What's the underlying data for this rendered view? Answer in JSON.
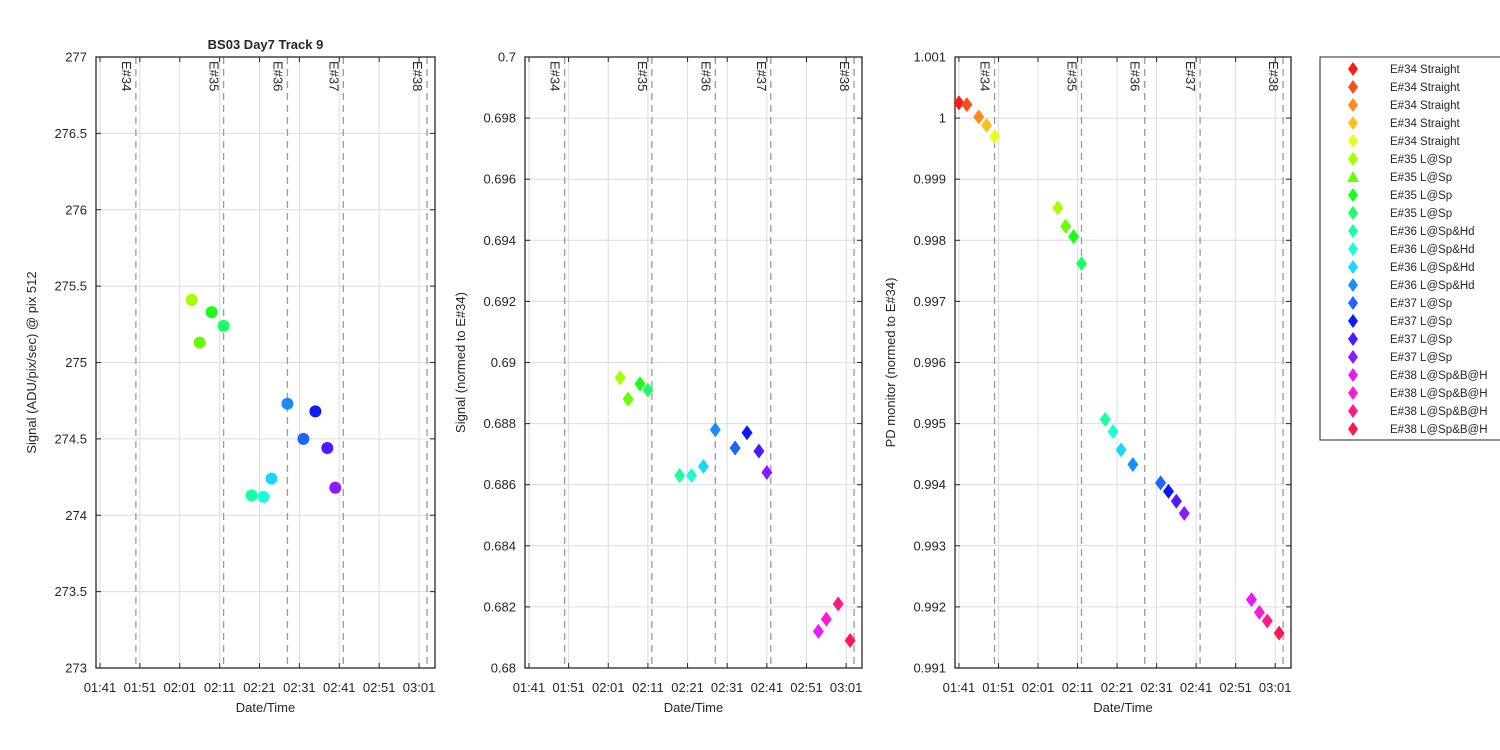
{
  "chart_data": [
    {
      "type": "scatter",
      "title": "BS03 Day7 Track 9",
      "xlabel": "Date/Time",
      "ylabel": "Signal (ADU/pix/sec) @ pix 512",
      "marker": "circle",
      "xlim": [
        "01:40",
        "03:05"
      ],
      "ylim": [
        273,
        277
      ],
      "yticks": [
        "273",
        "273.5",
        "274",
        "274.5",
        "275",
        "275.5",
        "276",
        "276.5",
        "277"
      ],
      "xticks": [
        "01:41",
        "01:51",
        "02:01",
        "02:11",
        "02:21",
        "02:31",
        "02:41",
        "02:51",
        "03:01"
      ],
      "grid": true,
      "event_lines": [
        {
          "label": "E#34",
          "time": "01:50"
        },
        {
          "label": "E#35",
          "time": "02:12"
        },
        {
          "label": "E#36",
          "time": "02:28"
        },
        {
          "label": "E#37",
          "time": "02:42"
        },
        {
          "label": "E#38",
          "time": "03:03"
        }
      ],
      "points": [
        {
          "x": "02:04",
          "y": 275.41,
          "color": "#a6ff00"
        },
        {
          "x": "02:06",
          "y": 275.13,
          "color": "#66ff00"
        },
        {
          "x": "02:09",
          "y": 275.33,
          "color": "#1aff1a"
        },
        {
          "x": "02:12",
          "y": 275.24,
          "color": "#1aff66"
        },
        {
          "x": "02:19",
          "y": 274.13,
          "color": "#1aff9f"
        },
        {
          "x": "02:22",
          "y": 274.12,
          "color": "#1affd5"
        },
        {
          "x": "02:24",
          "y": 274.24,
          "color": "#1ad5ff"
        },
        {
          "x": "02:28",
          "y": 274.73,
          "color": "#1a8cff"
        },
        {
          "x": "02:32",
          "y": 274.5,
          "color": "#1a66ff"
        },
        {
          "x": "02:35",
          "y": 274.68,
          "color": "#0d1aff"
        },
        {
          "x": "02:38",
          "y": 274.44,
          "color": "#4d1aff"
        },
        {
          "x": "02:40",
          "y": 274.18,
          "color": "#8c1aff"
        }
      ]
    },
    {
      "type": "scatter",
      "title": "",
      "xlabel": "Date/Time",
      "ylabel": "Signal (normed to E#34)",
      "marker": "diamond",
      "xlim": [
        "01:40",
        "03:05"
      ],
      "ylim": [
        0.68,
        0.7
      ],
      "yticks": [
        "0.68",
        "0.682",
        "0.684",
        "0.686",
        "0.688",
        "0.69",
        "0.692",
        "0.694",
        "0.696",
        "0.698",
        "0.7"
      ],
      "xticks": [
        "01:41",
        "01:51",
        "02:01",
        "02:11",
        "02:21",
        "02:31",
        "02:41",
        "02:51",
        "03:01"
      ],
      "grid": true,
      "event_lines": [
        {
          "label": "E#34",
          "time": "01:50"
        },
        {
          "label": "E#35",
          "time": "02:12"
        },
        {
          "label": "E#36",
          "time": "02:28"
        },
        {
          "label": "E#37",
          "time": "02:42"
        },
        {
          "label": "E#38",
          "time": "03:03"
        }
      ],
      "points": [
        {
          "x": "02:04",
          "y": 0.6895,
          "color": "#a6ff00"
        },
        {
          "x": "02:06",
          "y": 0.6888,
          "color": "#66ff00"
        },
        {
          "x": "02:09",
          "y": 0.6893,
          "color": "#1aff1a"
        },
        {
          "x": "02:11",
          "y": 0.6891,
          "color": "#1aff66"
        },
        {
          "x": "02:19",
          "y": 0.6863,
          "color": "#1aff9f"
        },
        {
          "x": "02:22",
          "y": 0.6863,
          "color": "#1affd5"
        },
        {
          "x": "02:25",
          "y": 0.6866,
          "color": "#1ad5ff"
        },
        {
          "x": "02:28",
          "y": 0.6878,
          "color": "#1a8cff"
        },
        {
          "x": "02:33",
          "y": 0.6872,
          "color": "#1a66ff"
        },
        {
          "x": "02:36",
          "y": 0.6877,
          "color": "#0d1aff"
        },
        {
          "x": "02:39",
          "y": 0.6871,
          "color": "#4d1aff"
        },
        {
          "x": "02:41",
          "y": 0.6864,
          "color": "#8c1aff"
        },
        {
          "x": "02:54",
          "y": 0.6812,
          "color": "#e61aff"
        },
        {
          "x": "02:56",
          "y": 0.6816,
          "color": "#ff1ad5"
        },
        {
          "x": "02:59",
          "y": 0.6821,
          "color": "#ff1a8c"
        },
        {
          "x": "03:02",
          "y": 0.6809,
          "color": "#ff1a4d"
        }
      ]
    },
    {
      "type": "scatter",
      "title": "",
      "xlabel": "Date/Time",
      "ylabel": "PD monitor (normed to E#34)",
      "marker": "diamond",
      "xlim": [
        "01:40",
        "03:05"
      ],
      "ylim": [
        0.991,
        1.001
      ],
      "yticks": [
        "0.991",
        "0.992",
        "0.993",
        "0.994",
        "0.995",
        "0.996",
        "0.997",
        "0.998",
        "0.999",
        "1",
        "1.001"
      ],
      "xticks": [
        "01:41",
        "01:51",
        "02:01",
        "02:11",
        "02:21",
        "02:31",
        "02:41",
        "02:51",
        "03:01"
      ],
      "grid": true,
      "event_lines": [
        {
          "label": "E#34",
          "time": "01:50"
        },
        {
          "label": "E#35",
          "time": "02:12"
        },
        {
          "label": "E#36",
          "time": "02:28"
        },
        {
          "label": "E#37",
          "time": "02:42"
        },
        {
          "label": "E#38",
          "time": "03:03"
        }
      ],
      "points": [
        {
          "x": "01:41",
          "y": 1.00025,
          "color": "#ff1a1a"
        },
        {
          "x": "01:43",
          "y": 1.00022,
          "color": "#ff4d1a"
        },
        {
          "x": "01:46",
          "y": 1.00002,
          "color": "#ff8c1a"
        },
        {
          "x": "01:48",
          "y": 0.99988,
          "color": "#ffc01a"
        },
        {
          "x": "01:50",
          "y": 0.9997,
          "color": "#e6ff1a"
        },
        {
          "x": "02:06",
          "y": 0.99853,
          "color": "#a6ff00"
        },
        {
          "x": "02:08",
          "y": 0.99823,
          "color": "#66ff00"
        },
        {
          "x": "02:10",
          "y": 0.99806,
          "color": "#1aff1a"
        },
        {
          "x": "02:12",
          "y": 0.99762,
          "color": "#1aff66"
        },
        {
          "x": "02:18",
          "y": 0.99507,
          "color": "#1aff9f"
        },
        {
          "x": "02:20",
          "y": 0.99487,
          "color": "#1affd5"
        },
        {
          "x": "02:22",
          "y": 0.99457,
          "color": "#1ad5ff"
        },
        {
          "x": "02:25",
          "y": 0.99433,
          "color": "#1a8cff"
        },
        {
          "x": "02:32",
          "y": 0.99403,
          "color": "#1a66ff"
        },
        {
          "x": "02:34",
          "y": 0.99389,
          "color": "#0d1aff"
        },
        {
          "x": "02:36",
          "y": 0.99373,
          "color": "#4d1aff"
        },
        {
          "x": "02:38",
          "y": 0.99353,
          "color": "#8c1aff"
        },
        {
          "x": "02:55",
          "y": 0.99212,
          "color": "#e61aff"
        },
        {
          "x": "02:57",
          "y": 0.99191,
          "color": "#ff1ad5"
        },
        {
          "x": "02:59",
          "y": 0.99177,
          "color": "#ff1a8c"
        },
        {
          "x": "03:02",
          "y": 0.99157,
          "color": "#ff1a4d"
        }
      ]
    }
  ],
  "legend": {
    "placement": "right",
    "entries": [
      {
        "label": "E#34 Straight",
        "color": "#ff1a1a",
        "marker": "diamond"
      },
      {
        "label": "E#34 Straight",
        "color": "#ff4d1a",
        "marker": "diamond"
      },
      {
        "label": "E#34 Straight",
        "color": "#ff8c1a",
        "marker": "diamond"
      },
      {
        "label": "E#34 Straight",
        "color": "#ffc01a",
        "marker": "diamond"
      },
      {
        "label": "E#34 Straight",
        "color": "#e6ff1a",
        "marker": "diamond"
      },
      {
        "label": "E#35 L@Sp",
        "color": "#a6ff00",
        "marker": "diamond"
      },
      {
        "label": "E#35 L@Sp",
        "color": "#66ff00",
        "marker": "triangle"
      },
      {
        "label": "E#35 L@Sp",
        "color": "#1aff1a",
        "marker": "diamond"
      },
      {
        "label": "E#35 L@Sp",
        "color": "#1aff66",
        "marker": "diamond"
      },
      {
        "label": "E#36 L@Sp&Hd",
        "color": "#1aff9f",
        "marker": "diamond"
      },
      {
        "label": "E#36 L@Sp&Hd",
        "color": "#1affd5",
        "marker": "diamond"
      },
      {
        "label": "E#36 L@Sp&Hd",
        "color": "#1ad5ff",
        "marker": "diamond"
      },
      {
        "label": "E#36 L@Sp&Hd",
        "color": "#1a8cff",
        "marker": "diamond"
      },
      {
        "label": "E#37 L@Sp",
        "color": "#1a66ff",
        "marker": "diamond"
      },
      {
        "label": "E#37 L@Sp",
        "color": "#0d1aff",
        "marker": "diamond"
      },
      {
        "label": "E#37 L@Sp",
        "color": "#4d1aff",
        "marker": "diamond"
      },
      {
        "label": "E#37 L@Sp",
        "color": "#8c1aff",
        "marker": "diamond"
      },
      {
        "label": "E#38 L@Sp&B@H",
        "color": "#e61aff",
        "marker": "diamond"
      },
      {
        "label": "E#38 L@Sp&B@H",
        "color": "#ff1ad5",
        "marker": "diamond"
      },
      {
        "label": "E#38 L@Sp&B@H",
        "color": "#ff1a8c",
        "marker": "diamond"
      },
      {
        "label": "E#38 L@Sp&B@H",
        "color": "#ff1a4d",
        "marker": "diamond"
      }
    ]
  }
}
